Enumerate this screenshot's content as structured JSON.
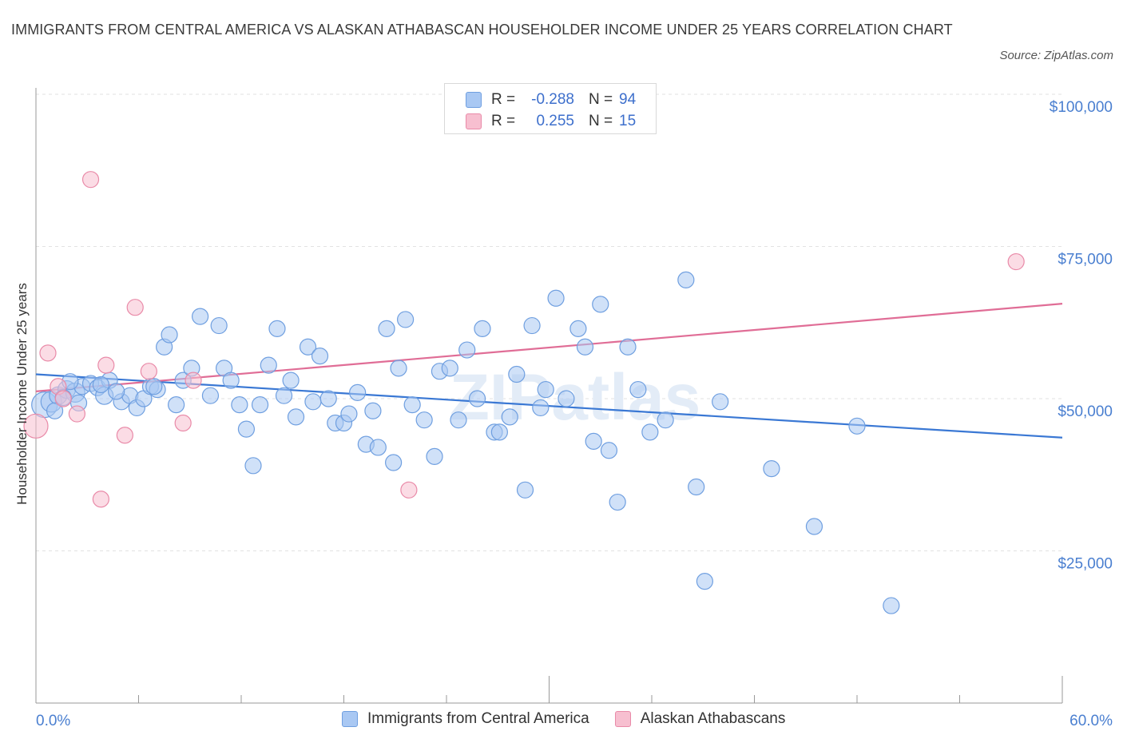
{
  "title": "IMMIGRANTS FROM CENTRAL AMERICA VS ALASKAN ATHABASCAN HOUSEHOLDER INCOME UNDER 25 YEARS CORRELATION CHART",
  "source": "Source: ZipAtlas.com",
  "watermark": "ZIPatlas",
  "legend": {
    "rows": [
      {
        "r_label": "R =",
        "r_value": "-0.288",
        "n_label": "N =",
        "n_value": "94",
        "color": "#a9c8f3",
        "border": "#6f9fe0"
      },
      {
        "r_label": "R =",
        "r_value": "0.255",
        "n_label": "N =",
        "n_value": "15",
        "color": "#f7bfd0",
        "border": "#e98aa8"
      }
    ]
  },
  "bottom_legend": [
    "Immigrants from Central America",
    "Alaskan Athabascans"
  ],
  "chart_data": {
    "type": "scatter",
    "title": "IMMIGRANTS FROM CENTRAL AMERICA VS ALASKAN ATHABASCAN HOUSEHOLDER INCOME UNDER 25 YEARS CORRELATION CHART",
    "xlabel": "",
    "ylabel": "Householder Income Under 25 years",
    "xlim": [
      0,
      60
    ],
    "ylim": [
      0,
      100000
    ],
    "x_tick_labels": [
      "0.0%",
      "60.0%"
    ],
    "y_tick_labels": [
      {
        "value": 100000,
        "label": "$100,000"
      },
      {
        "value": 75000,
        "label": "$75,000"
      },
      {
        "value": 50000,
        "label": "$50,000"
      },
      {
        "value": 25000,
        "label": "$25,000"
      }
    ],
    "grid": true,
    "series": [
      {
        "name": "Immigrants from Central America",
        "color": "#a9c8f3",
        "stroke": "#6f9fe0",
        "trend": {
          "x": [
            0,
            60
          ],
          "y": [
            54000,
            43600
          ],
          "color": "#3a78d4"
        },
        "points": [
          [
            0.5,
            49000,
            16
          ],
          [
            0.9,
            49500,
            13
          ],
          [
            1.3,
            50500,
            11
          ],
          [
            1.8,
            51500,
            11
          ],
          [
            2.3,
            51000,
            12
          ],
          [
            2.7,
            52000,
            10
          ],
          [
            3.2,
            52500,
            10
          ],
          [
            3.6,
            51800,
            10
          ],
          [
            4.0,
            50500,
            11
          ],
          [
            4.3,
            53000,
            10
          ],
          [
            5.0,
            49500,
            10
          ],
          [
            5.5,
            50500,
            10
          ],
          [
            5.9,
            48500,
            10
          ],
          [
            6.3,
            50000,
            10
          ],
          [
            6.7,
            52000,
            10
          ],
          [
            7.1,
            51500,
            10
          ],
          [
            7.5,
            58500,
            10
          ],
          [
            7.8,
            60500,
            10
          ],
          [
            8.2,
            49000,
            10
          ],
          [
            8.6,
            53000,
            10
          ],
          [
            9.1,
            55000,
            10
          ],
          [
            9.6,
            63500,
            10
          ],
          [
            10.2,
            50500,
            10
          ],
          [
            10.7,
            62000,
            10
          ],
          [
            11.0,
            55000,
            10
          ],
          [
            11.4,
            53000,
            10
          ],
          [
            11.9,
            49000,
            10
          ],
          [
            12.3,
            45000,
            10
          ],
          [
            12.7,
            39000,
            10
          ],
          [
            13.1,
            49000,
            10
          ],
          [
            13.6,
            55500,
            10
          ],
          [
            14.1,
            61500,
            10
          ],
          [
            14.5,
            50500,
            10
          ],
          [
            14.9,
            53000,
            10
          ],
          [
            15.2,
            47000,
            10
          ],
          [
            15.9,
            58500,
            10
          ],
          [
            16.2,
            49500,
            10
          ],
          [
            16.6,
            57000,
            10
          ],
          [
            17.1,
            50000,
            10
          ],
          [
            17.5,
            46000,
            10
          ],
          [
            18.0,
            46000,
            10
          ],
          [
            18.3,
            47500,
            10
          ],
          [
            18.8,
            51000,
            10
          ],
          [
            19.3,
            42500,
            10
          ],
          [
            19.7,
            48000,
            10
          ],
          [
            20.0,
            42000,
            10
          ],
          [
            20.5,
            61500,
            10
          ],
          [
            20.9,
            39500,
            10
          ],
          [
            21.2,
            55000,
            10
          ],
          [
            21.6,
            63000,
            10
          ],
          [
            22.0,
            49000,
            10
          ],
          [
            22.7,
            46500,
            10
          ],
          [
            23.3,
            40500,
            10
          ],
          [
            23.6,
            54500,
            10
          ],
          [
            24.2,
            55000,
            10
          ],
          [
            24.7,
            46500,
            10
          ],
          [
            25.2,
            58000,
            10
          ],
          [
            25.8,
            50000,
            10
          ],
          [
            26.1,
            61500,
            10
          ],
          [
            26.8,
            44500,
            10
          ],
          [
            27.1,
            44500,
            10
          ],
          [
            27.7,
            47000,
            10
          ],
          [
            28.1,
            54000,
            10
          ],
          [
            28.6,
            35000,
            10
          ],
          [
            29.0,
            62000,
            10
          ],
          [
            29.5,
            48500,
            10
          ],
          [
            29.8,
            51500,
            10
          ],
          [
            30.4,
            66500,
            10
          ],
          [
            31.0,
            50000,
            10
          ],
          [
            31.7,
            61500,
            10
          ],
          [
            32.1,
            58500,
            10
          ],
          [
            32.6,
            43000,
            10
          ],
          [
            33.0,
            65500,
            10
          ],
          [
            33.5,
            41500,
            10
          ],
          [
            34.0,
            33000,
            10
          ],
          [
            34.6,
            58500,
            10
          ],
          [
            35.2,
            51500,
            10
          ],
          [
            35.9,
            44500,
            10
          ],
          [
            36.8,
            46500,
            10
          ],
          [
            38.0,
            69500,
            10
          ],
          [
            38.6,
            35500,
            10
          ],
          [
            39.1,
            20000,
            10
          ],
          [
            40.0,
            49500,
            10
          ],
          [
            43.0,
            38500,
            10
          ],
          [
            45.5,
            29000,
            10
          ],
          [
            48.0,
            45500,
            10
          ],
          [
            50.0,
            16000,
            10
          ],
          [
            1.1,
            48000,
            10
          ],
          [
            1.6,
            50200,
            10
          ],
          [
            2.0,
            52800,
            10
          ],
          [
            2.5,
            49300,
            10
          ],
          [
            3.8,
            52300,
            10
          ],
          [
            4.7,
            51200,
            10
          ],
          [
            6.9,
            52000,
            10
          ]
        ]
      },
      {
        "name": "Alaskan Athabascans",
        "color": "#f7bfd0",
        "stroke": "#e98aa8",
        "trend": {
          "x": [
            0,
            60
          ],
          "y": [
            51200,
            65600
          ],
          "color": "#e06d96"
        },
        "points": [
          [
            0.0,
            45500,
            15
          ],
          [
            0.7,
            57500,
            10
          ],
          [
            1.3,
            52000,
            10
          ],
          [
            1.6,
            50000,
            10
          ],
          [
            2.4,
            47500,
            10
          ],
          [
            3.2,
            86000,
            10
          ],
          [
            3.8,
            33500,
            10
          ],
          [
            4.1,
            55500,
            10
          ],
          [
            5.2,
            44000,
            10
          ],
          [
            5.8,
            65000,
            10
          ],
          [
            6.6,
            54500,
            10
          ],
          [
            8.6,
            46000,
            10
          ],
          [
            9.2,
            53000,
            10
          ],
          [
            21.8,
            35000,
            10
          ],
          [
            57.3,
            72500,
            10
          ]
        ]
      }
    ]
  }
}
